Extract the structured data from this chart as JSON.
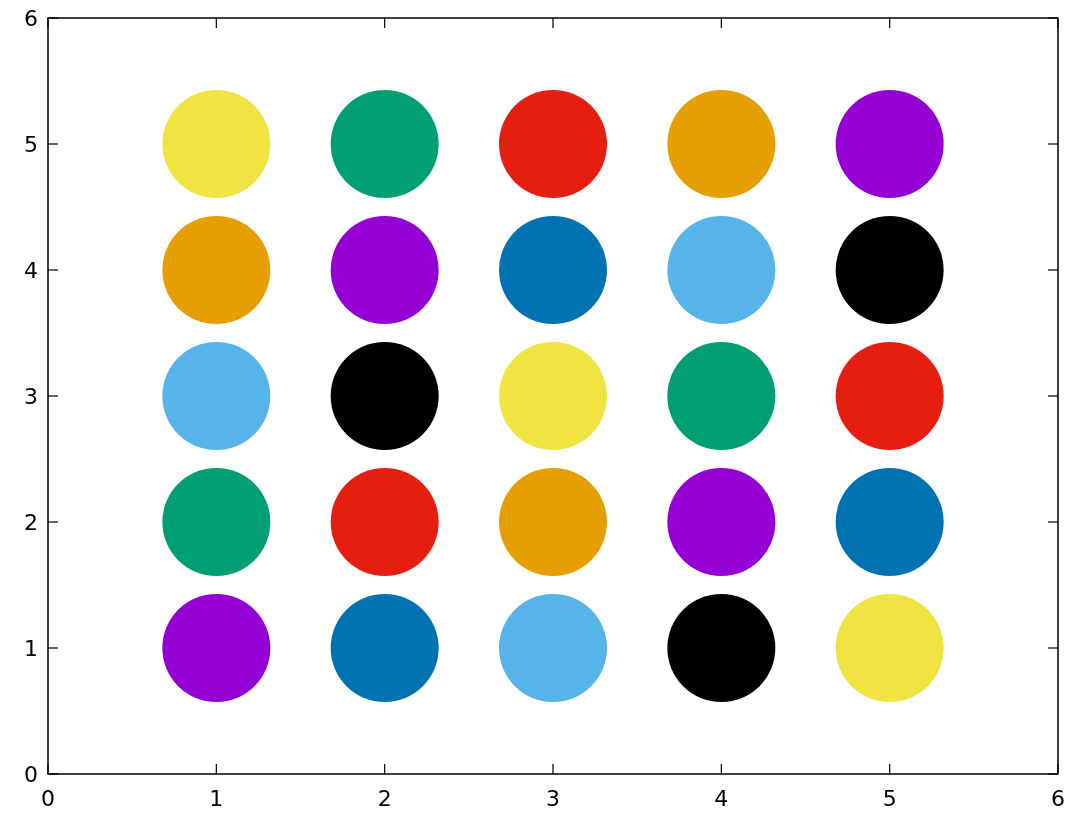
{
  "chart_data": {
    "type": "scatter",
    "marker": "circle",
    "xlim": [
      0,
      6
    ],
    "xticks": [
      0,
      1,
      2,
      3,
      4,
      5,
      6
    ],
    "ylim": [
      0,
      6
    ],
    "yticks": [
      0,
      1,
      2,
      3,
      4,
      5,
      6
    ],
    "series": [
      {
        "x": [
          1,
          2,
          3,
          4,
          5,
          1,
          2,
          3,
          4,
          5,
          1,
          2,
          3,
          4,
          5,
          1,
          2,
          3,
          4,
          5,
          1,
          2,
          3,
          4,
          5
        ],
        "values": [
          5,
          5,
          5,
          5,
          5,
          4,
          4,
          4,
          4,
          4,
          3,
          3,
          3,
          3,
          3,
          2,
          2,
          2,
          2,
          2,
          1,
          1,
          1,
          1,
          1
        ],
        "colors": [
          "#f0e442",
          "#009e73",
          "#e51e10",
          "#e69f00",
          "#9400d3",
          "#e69f00",
          "#9400d3",
          "#0072b2",
          "#56b4e9",
          "#000000",
          "#56b4e9",
          "#000000",
          "#f0e442",
          "#009e73",
          "#e51e10",
          "#009e73",
          "#e51e10",
          "#e69f00",
          "#9400d3",
          "#0072b2",
          "#9400d3",
          "#0072b2",
          "#56b4e9",
          "#000000",
          "#f0e442"
        ]
      }
    ]
  }
}
